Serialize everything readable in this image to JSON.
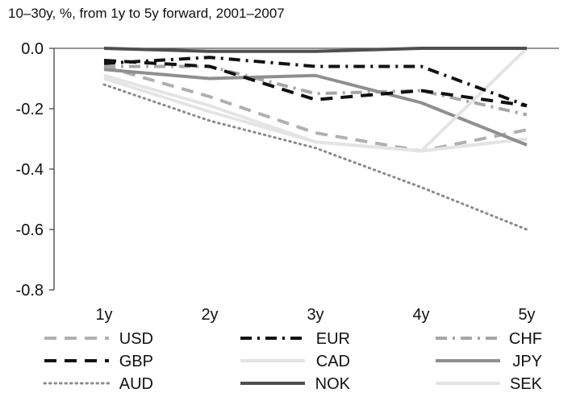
{
  "chart_data": {
    "type": "line",
    "subtitle": "10–30y, %, from 1y to 5y forward, 2001–2007",
    "categories": [
      "1y",
      "2y",
      "3y",
      "4y",
      "5y"
    ],
    "y_ticks": [
      "0.0",
      "-0.2",
      "-0.4",
      "-0.6",
      "-0.8"
    ],
    "ylim": [
      -0.8,
      0.0
    ],
    "grid": false,
    "legend_position": "bottom",
    "series": [
      {
        "name": "USD",
        "values": [
          -0.06,
          -0.16,
          -0.28,
          -0.34,
          -0.27
        ],
        "color": "#b0b0b0",
        "style": "dashed"
      },
      {
        "name": "EUR",
        "values": [
          -0.05,
          -0.03,
          -0.06,
          -0.06,
          -0.19
        ],
        "color": "#111111",
        "style": "dashdot"
      },
      {
        "name": "CHF",
        "values": [
          -0.06,
          -0.06,
          -0.15,
          -0.14,
          -0.22
        ],
        "color": "#a6a6a6",
        "style": "dashdot"
      },
      {
        "name": "GBP",
        "values": [
          -0.04,
          -0.06,
          -0.17,
          -0.14,
          -0.19
        ],
        "color": "#111111",
        "style": "dashed"
      },
      {
        "name": "CAD",
        "values": [
          -0.1,
          -0.21,
          -0.31,
          -0.34,
          -0.3
        ],
        "color": "#e4e4e4",
        "style": "solid"
      },
      {
        "name": "JPY",
        "values": [
          -0.07,
          -0.1,
          -0.09,
          -0.18,
          -0.32
        ],
        "color": "#8f8f8f",
        "style": "solid"
      },
      {
        "name": "AUD",
        "values": [
          -0.12,
          -0.24,
          -0.33,
          -0.46,
          -0.6
        ],
        "color": "#8a8a8a",
        "style": "dotted"
      },
      {
        "name": "NOK",
        "values": [
          0.0,
          -0.01,
          -0.01,
          0.0,
          0.0
        ],
        "color": "#4f4f4f",
        "style": "solid"
      },
      {
        "name": "SEK",
        "values": [
          -0.09,
          -0.19,
          -0.31,
          -0.34,
          0.0
        ],
        "color": "#e4e4e4",
        "style": "solid"
      }
    ]
  }
}
